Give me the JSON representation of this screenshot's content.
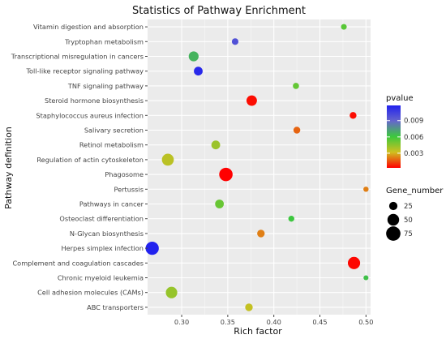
{
  "chart_data": {
    "type": "scatter",
    "title": "Statistics of Pathway Enrichment",
    "xlabel": "Rich factor",
    "ylabel": "Pathway definition",
    "xlim": [
      0.263,
      0.505
    ],
    "x_ticks": [
      "0.30",
      "0.35",
      "0.40",
      "0.45",
      "0.50"
    ],
    "x_tick_values": [
      0.3,
      0.35,
      0.4,
      0.45,
      0.5
    ],
    "grid": true,
    "legend_position": "right",
    "pvalue_legend": {
      "title": "pvalue",
      "ticks": [
        "0.009",
        "0.006",
        "0.003"
      ],
      "tick_values": [
        0.009,
        0.006,
        0.003
      ],
      "range": [
        0.0003,
        0.0118
      ],
      "colors_low_to_high": [
        "#ff0000",
        "#d0c020",
        "#3cc93c",
        "#6666cc",
        "#2222ee"
      ]
    },
    "gene_legend": {
      "title": "Gene_number",
      "labels": [
        "25",
        "50",
        "75"
      ],
      "values": [
        25,
        50,
        75
      ]
    },
    "categories": [
      "Vitamin digestion and absorption",
      "Tryptophan metabolism",
      "Transcriptional misregulation in cancers",
      "Toll-like receptor signaling pathway",
      "TNF signaling pathway",
      "Steroid hormone biosynthesis",
      "Staphylococcus aureus infection",
      "Salivary secretion",
      "Retinol metabolism",
      "Regulation of actin cytoskeleton",
      "Phagosome",
      "Pertussis",
      "Pathways in cancer",
      "Osteoclast differentiation",
      "N-Glycan biosynthesis",
      "Herpes simplex infection",
      "Complement and coagulation cascades",
      "Chronic myeloid leukemia",
      "Cell adhesion molecules (CAMs)",
      "ABC transporters"
    ],
    "points": [
      {
        "pathway": "Vitamin digestion and absorption",
        "rich_factor": 0.476,
        "pvalue": 0.0055,
        "gene_number": 12
      },
      {
        "pathway": "Tryptophan metabolism",
        "rich_factor": 0.358,
        "pvalue": 0.0098,
        "gene_number": 16
      },
      {
        "pathway": "Transcriptional misregulation in cancers",
        "rich_factor": 0.313,
        "pvalue": 0.0067,
        "gene_number": 36
      },
      {
        "pathway": "Toll-like receptor signaling pathway",
        "rich_factor": 0.318,
        "pvalue": 0.0115,
        "gene_number": 28
      },
      {
        "pathway": "TNF signaling pathway",
        "rich_factor": 0.424,
        "pvalue": 0.0053,
        "gene_number": 14
      },
      {
        "pathway": "Steroid hormone biosynthesis",
        "rich_factor": 0.376,
        "pvalue": 0.0005,
        "gene_number": 40
      },
      {
        "pathway": "Staphylococcus aureus infection",
        "rich_factor": 0.486,
        "pvalue": 0.0005,
        "gene_number": 17
      },
      {
        "pathway": "Salivary secretion",
        "rich_factor": 0.425,
        "pvalue": 0.0018,
        "gene_number": 17
      },
      {
        "pathway": "Retinol metabolism",
        "rich_factor": 0.337,
        "pvalue": 0.0042,
        "gene_number": 28
      },
      {
        "pathway": "Regulation of actin cytoskeleton",
        "rich_factor": 0.285,
        "pvalue": 0.0036,
        "gene_number": 52
      },
      {
        "pathway": "Phagosome",
        "rich_factor": 0.348,
        "pvalue": 0.0003,
        "gene_number": 66
      },
      {
        "pathway": "Pertussis",
        "rich_factor": 0.5,
        "pvalue": 0.0022,
        "gene_number": 10
      },
      {
        "pathway": "Pathways in cancer",
        "rich_factor": 0.341,
        "pvalue": 0.0052,
        "gene_number": 28
      },
      {
        "pathway": "Osteoclast differentiation",
        "rich_factor": 0.419,
        "pvalue": 0.0061,
        "gene_number": 13
      },
      {
        "pathway": "N-Glycan biosynthesis",
        "rich_factor": 0.386,
        "pvalue": 0.0022,
        "gene_number": 21
      },
      {
        "pathway": "Herpes simplex infection",
        "rich_factor": 0.268,
        "pvalue": 0.0118,
        "gene_number": 64
      },
      {
        "pathway": "Complement and coagulation cascades",
        "rich_factor": 0.487,
        "pvalue": 0.0004,
        "gene_number": 55
      },
      {
        "pathway": "Chronic myeloid leukemia",
        "rich_factor": 0.5,
        "pvalue": 0.0063,
        "gene_number": 9
      },
      {
        "pathway": "Cell adhesion molecules (CAMs)",
        "rich_factor": 0.289,
        "pvalue": 0.0043,
        "gene_number": 48
      },
      {
        "pathway": "ABC transporters",
        "rich_factor": 0.373,
        "pvalue": 0.0034,
        "gene_number": 21
      }
    ]
  }
}
